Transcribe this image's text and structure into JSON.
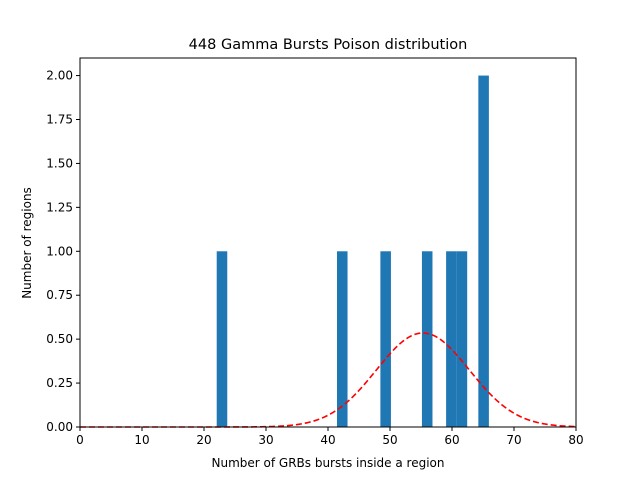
{
  "chart_data": {
    "type": "bar",
    "title": "448 Gamma Bursts Poison distribution",
    "xlabel": "Number of GRBs bursts inside a region",
    "ylabel": "Number of regions",
    "xlim": [
      0,
      80
    ],
    "ylim": [
      0,
      2.1
    ],
    "xticks": [
      "0",
      "10",
      "20",
      "30",
      "40",
      "50",
      "60",
      "70",
      "80"
    ],
    "yticks": [
      "0.00",
      "0.25",
      "0.50",
      "0.75",
      "1.00",
      "1.25",
      "1.50",
      "1.75",
      "2.00"
    ],
    "bar_width": 1.7,
    "bars": [
      {
        "x": 22.9,
        "value": 1
      },
      {
        "x": 42.3,
        "value": 1
      },
      {
        "x": 49.3,
        "value": 1
      },
      {
        "x": 56.0,
        "value": 1
      },
      {
        "x": 59.9,
        "value": 1
      },
      {
        "x": 61.6,
        "value": 1
      },
      {
        "x": 65.1,
        "value": 2
      }
    ],
    "fit_curve": {
      "style": "dashed",
      "color": "#ff0000",
      "mean": 55.3,
      "sigma": 7.5,
      "peak": 0.535
    },
    "bar_color": "#1f77b4",
    "grid": false
  }
}
